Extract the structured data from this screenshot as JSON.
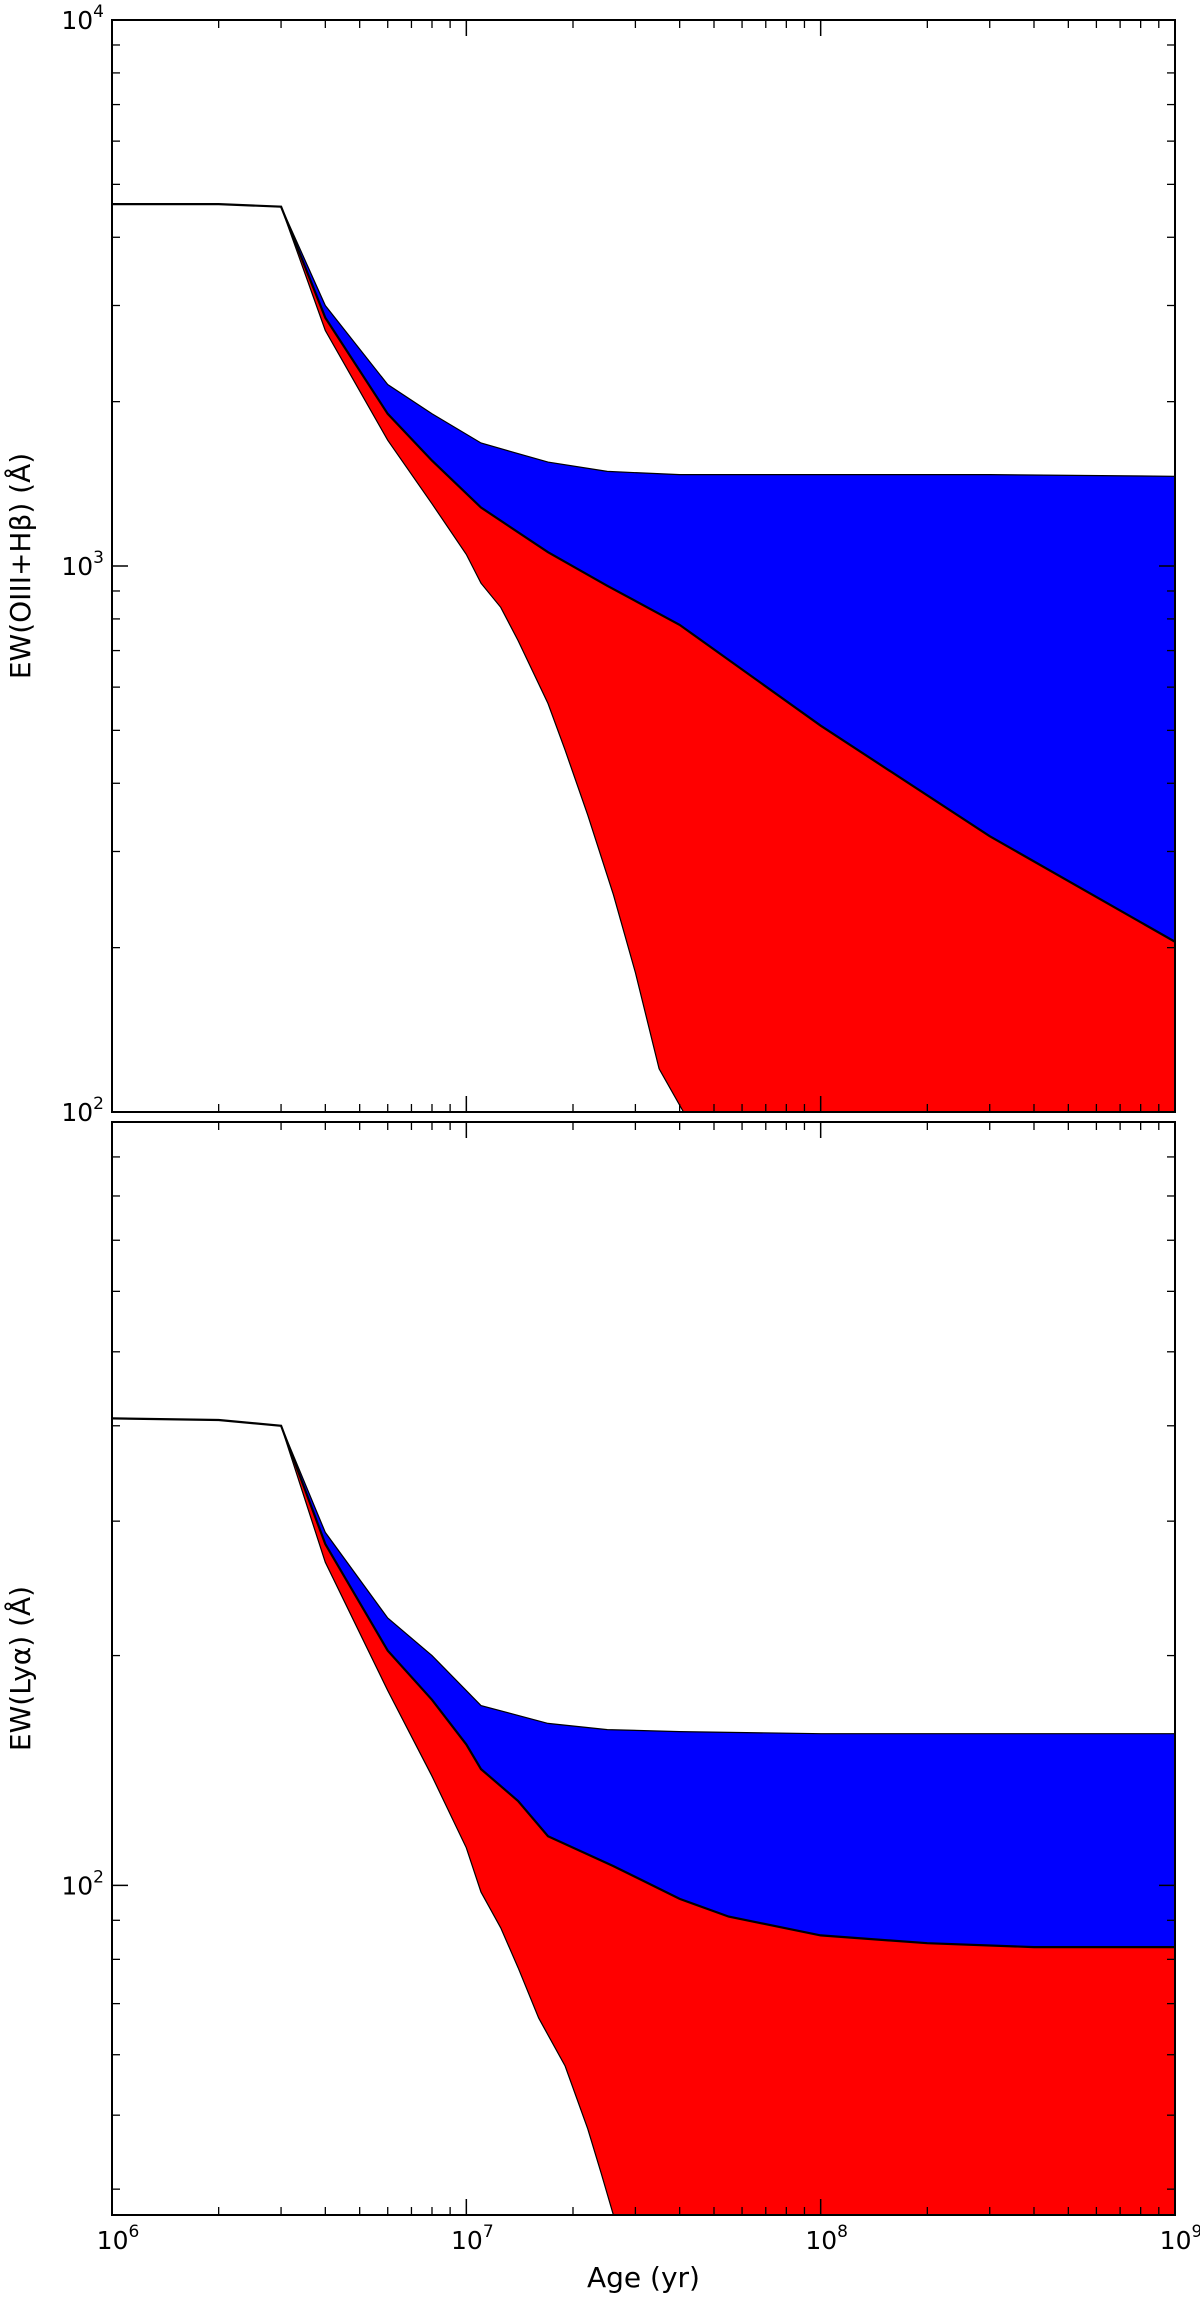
{
  "chart_data": [
    {
      "type": "area",
      "ylabel": "EW(OIII+Hβ) (Å)",
      "xlabel": "",
      "xscale": "log",
      "yscale": "log",
      "xlim": [
        1000000,
        1000000000
      ],
      "ylim": [
        100,
        10000
      ],
      "x_ticks": [
        {
          "value": 1000000,
          "base": "10",
          "exp": "6"
        },
        {
          "value": 10000000,
          "base": "10",
          "exp": "7"
        },
        {
          "value": 100000000,
          "base": "10",
          "exp": "8"
        },
        {
          "value": 1000000000,
          "base": "10",
          "exp": "9"
        }
      ],
      "x_ticklabels_visible": false,
      "y_ticks": [
        {
          "value": 100,
          "base": "10",
          "exp": "2"
        },
        {
          "value": 1000,
          "base": "10",
          "exp": "3"
        },
        {
          "value": 10000,
          "base": "10",
          "exp": "4"
        }
      ],
      "grid": false,
      "legend": "none",
      "series": [
        {
          "role": "upper-band",
          "color": "#0000ff",
          "x": [
            1000000,
            2000000,
            3000000,
            4000000,
            6000000,
            8000000,
            11000000,
            17000000,
            25000000,
            40000000,
            100000000,
            300000000,
            1000000000
          ],
          "y": [
            4600,
            4600,
            4550,
            3000,
            2150,
            1900,
            1680,
            1550,
            1490,
            1470,
            1470,
            1470,
            1460
          ]
        },
        {
          "role": "central-line",
          "color": "#000000",
          "x": [
            1000000,
            2000000,
            3000000,
            4000000,
            6000000,
            8000000,
            11000000,
            17000000,
            25000000,
            40000000,
            100000000,
            300000000,
            1000000000
          ],
          "y": [
            4600,
            4600,
            4550,
            2850,
            1900,
            1560,
            1280,
            1060,
            920,
            780,
            510,
            320,
            205
          ]
        },
        {
          "role": "lower-band",
          "color": "#ff0000",
          "x": [
            1000000,
            2000000,
            3000000,
            4000000,
            6000000,
            8000000,
            10000000,
            11000000,
            12500000,
            14000000,
            17000000,
            19000000,
            22000000,
            26000000,
            30000000,
            35000000,
            41000000,
            44000000,
            1000000000
          ],
          "y": [
            4600,
            4600,
            4550,
            2700,
            1700,
            1300,
            1050,
            930,
            840,
            730,
            560,
            460,
            350,
            250,
            180,
            120,
            100,
            100,
            100
          ]
        }
      ]
    },
    {
      "type": "area",
      "ylabel": "EW(Lyα) (Å)",
      "xlabel": "Age (yr)",
      "xscale": "log",
      "yscale": "log",
      "xlim": [
        1000000,
        1000000000
      ],
      "ylim": [
        37,
        1000
      ],
      "x_ticks": [
        {
          "value": 1000000,
          "base": "10",
          "exp": "6"
        },
        {
          "value": 10000000,
          "base": "10",
          "exp": "7"
        },
        {
          "value": 100000000,
          "base": "10",
          "exp": "8"
        },
        {
          "value": 1000000000,
          "base": "10",
          "exp": "9"
        }
      ],
      "x_ticklabels_visible": true,
      "y_ticks": [
        {
          "value": 100,
          "base": "10",
          "exp": "2"
        }
      ],
      "grid": false,
      "legend": "none",
      "series": [
        {
          "role": "upper-band",
          "color": "#0000ff",
          "x": [
            1000000,
            2000000,
            3000000,
            4000000,
            6000000,
            8000000,
            11000000,
            17000000,
            25000000,
            40000000,
            100000000,
            300000000,
            1000000000
          ],
          "y": [
            409,
            407,
            400,
            290,
            224,
            200,
            172,
            163,
            160,
            159,
            158,
            158,
            158
          ]
        },
        {
          "role": "central-line",
          "color": "#000000",
          "x": [
            1000000,
            2000000,
            3000000,
            4000000,
            6000000,
            8000000,
            10000000,
            11000000,
            14000000,
            17000000,
            26000000,
            40000000,
            55000000,
            100000000,
            200000000,
            400000000,
            1000000000
          ],
          "y": [
            409,
            407,
            400,
            280,
            203,
            175,
            153,
            142,
            129,
            116,
            106,
            96,
            91,
            86,
            84,
            83,
            83
          ]
        },
        {
          "role": "lower-band",
          "color": "#ff0000",
          "x": [
            1000000,
            2000000,
            3000000,
            4000000,
            6000000,
            8000000,
            10000000,
            11000000,
            12500000,
            14000000,
            16000000,
            19000000,
            22000000,
            24000000,
            26000000,
            1000000000
          ],
          "y": [
            409,
            407,
            400,
            265,
            180,
            139,
            112,
            98,
            88,
            78,
            67,
            58,
            48,
            42,
            37,
            37
          ]
        }
      ]
    }
  ]
}
